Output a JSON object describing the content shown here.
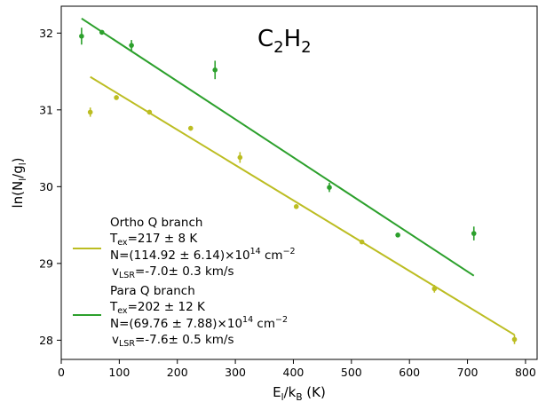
{
  "chart_data": {
    "type": "scatter",
    "title_main": "C",
    "title_sub1": "2",
    "title_mid": "H",
    "title_sub2": "2",
    "xlabel": {
      "base": "E",
      "sub": "l",
      "rest": "/k",
      "sub2": "B",
      "tail": " (K)"
    },
    "ylabel": {
      "base": "ln(N",
      "sub": "l",
      "mid": "/g",
      "sub2": "l",
      "tail": ")"
    },
    "xlim": [
      0,
      820
    ],
    "ylim": [
      27.75,
      32.35
    ],
    "xticks": [
      "0",
      "100",
      "200",
      "300",
      "400",
      "500",
      "600",
      "700",
      "800"
    ],
    "yticks": [
      "28",
      "29",
      "30",
      "31",
      "32"
    ],
    "series": [
      {
        "name": "Ortho Q branch",
        "color": "#bcbd22",
        "points": [
          {
            "x": 50,
            "y": 30.97,
            "err": 0.06
          },
          {
            "x": 95,
            "y": 31.16,
            "err": 0.03
          },
          {
            "x": 152,
            "y": 30.97,
            "err": 0.03
          },
          {
            "x": 223,
            "y": 30.76,
            "err": 0.03
          },
          {
            "x": 308,
            "y": 30.38,
            "err": 0.07
          },
          {
            "x": 405,
            "y": 29.74,
            "err": 0.03
          },
          {
            "x": 518,
            "y": 29.28,
            "err": 0.02
          },
          {
            "x": 643,
            "y": 28.67,
            "err": 0.05
          },
          {
            "x": 781,
            "y": 28.01,
            "err": 0.06
          }
        ],
        "fit": [
          {
            "x": 50,
            "y": 31.43
          },
          {
            "x": 781,
            "y": 28.07
          }
        ],
        "legend": {
          "t_base": "T",
          "t_sub": "ex",
          "t_rest": "=217 ± 8 K",
          "n_text": "N=(114.92 ± 6.14)×10",
          "n_exp": "14",
          "n_unit": " cm",
          "n_unit_exp": "−2",
          "v_base": "v",
          "v_sub": "LSR",
          "v_rest": "=-7.0± 0.3 km/s"
        }
      },
      {
        "name": "Para Q branch",
        "color": "#2ca02c",
        "points": [
          {
            "x": 35,
            "y": 31.96,
            "err": 0.11
          },
          {
            "x": 70,
            "y": 32.01,
            "err": 0.02
          },
          {
            "x": 121,
            "y": 31.84,
            "err": 0.07
          },
          {
            "x": 265,
            "y": 31.52,
            "err": 0.12
          },
          {
            "x": 462,
            "y": 29.99,
            "err": 0.06
          },
          {
            "x": 580,
            "y": 29.37,
            "err": 0.03
          },
          {
            "x": 711,
            "y": 29.39,
            "err": 0.09
          }
        ],
        "fit": [
          {
            "x": 35,
            "y": 32.19
          },
          {
            "x": 711,
            "y": 28.84
          }
        ],
        "legend": {
          "t_base": "T",
          "t_sub": "ex",
          "t_rest": "=202 ± 12 K",
          "n_text": "N=(69.76 ± 7.88)×10",
          "n_exp": "14",
          "n_unit": " cm",
          "n_unit_exp": "−2",
          "v_base": "v",
          "v_sub": "LSR",
          "v_rest": "=-7.6± 0.5 km/s"
        }
      }
    ],
    "legend_placement": "lower-left"
  }
}
